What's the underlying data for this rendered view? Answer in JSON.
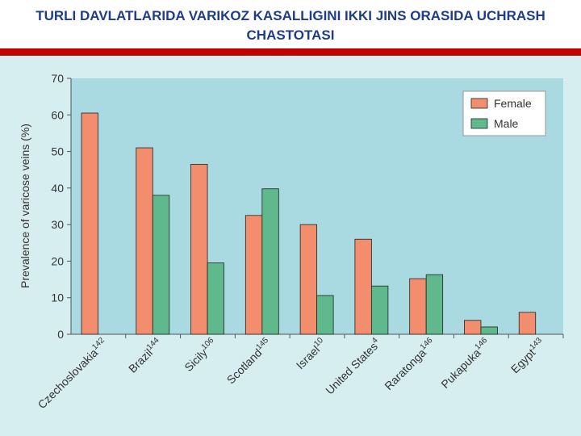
{
  "chart_data": {
    "type": "bar",
    "title": "TURLI DAVLATLARIDA VARIKOZ KASALLIGINI IKKI JINS ORASIDA UCHRASH CHASTOTASI",
    "y_label": "Prevalence of varicose veins (%)",
    "categories": [
      "Czechoslovakia",
      "Brazil",
      "Sicily",
      "Scotland",
      "Israel",
      "United States",
      "Raratonga",
      "Pukapuka",
      "Egypt"
    ],
    "category_refs": [
      "142",
      "144",
      "106",
      "145",
      "10",
      "4",
      "146",
      "146",
      "143"
    ],
    "series": [
      {
        "name": "Female",
        "color": "#f28d6e",
        "values": [
          60.5,
          51,
          46.5,
          32.5,
          30,
          26,
          15.2,
          3.8,
          6
        ]
      },
      {
        "name": "Male",
        "color": "#5fb98c",
        "values": [
          null,
          38,
          19.5,
          39.8,
          10.6,
          13.2,
          16.3,
          2,
          null
        ]
      }
    ],
    "ylim": [
      0,
      70
    ],
    "yticks": [
      0,
      10,
      20,
      30,
      40,
      50,
      60,
      70
    ],
    "legend": "upper right"
  }
}
